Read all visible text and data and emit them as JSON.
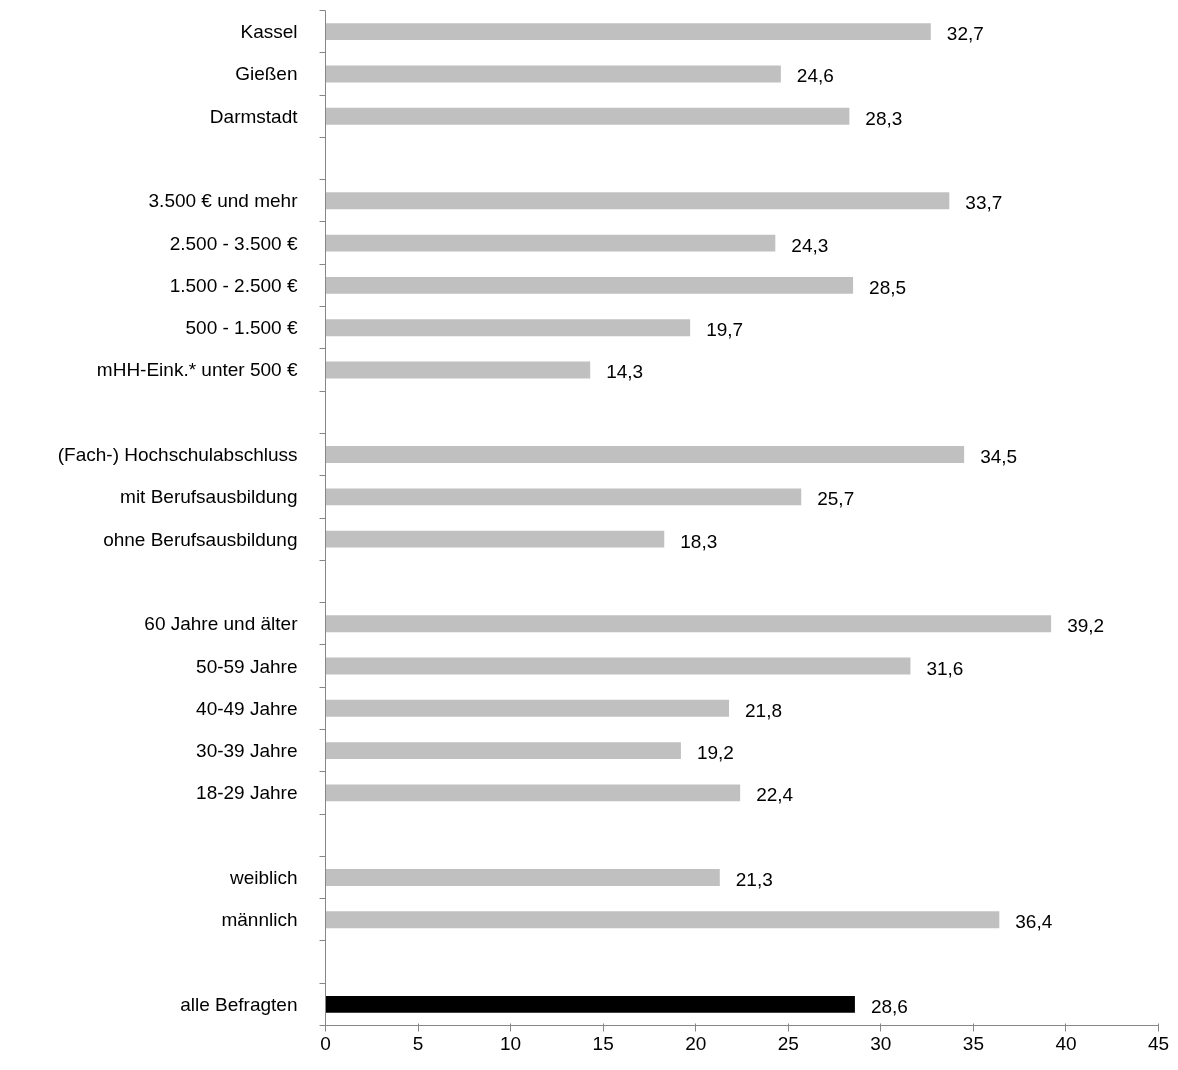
{
  "chart_data": {
    "type": "bar",
    "orientation": "horizontal",
    "categories": [
      "Kassel",
      "Gießen",
      "Darmstadt",
      null,
      "3.500 € und mehr",
      "2.500 - 3.500 €",
      "1.500 - 2.500 €",
      "500 - 1.500 €",
      "mHH-Eink.* unter 500 €",
      null,
      "(Fach-) Hochschulabschluss",
      "mit Berufsausbildung",
      "ohne Berufsausbildung",
      null,
      "60 Jahre und älter",
      "50-59 Jahre",
      "40-49 Jahre",
      "30-39 Jahre",
      "18-29 Jahre",
      null,
      "weiblich",
      "männlich",
      null,
      "alle Befragten"
    ],
    "values": [
      32.7,
      24.6,
      28.3,
      null,
      33.7,
      24.3,
      28.5,
      19.7,
      14.3,
      null,
      34.5,
      25.7,
      18.3,
      null,
      39.2,
      31.6,
      21.8,
      19.2,
      22.4,
      null,
      21.3,
      36.4,
      null,
      28.6
    ],
    "value_labels": [
      "32,7",
      "24,6",
      "28,3",
      null,
      "33,7",
      "24,3",
      "28,5",
      "19,7",
      "14,3",
      null,
      "34,5",
      "25,7",
      "18,3",
      null,
      "39,2",
      "31,6",
      "21,8",
      "19,2",
      "22,4",
      null,
      "21,3",
      "36,4",
      null,
      "28,6"
    ],
    "colors": [
      "#c0c0c0",
      "#c0c0c0",
      "#c0c0c0",
      null,
      "#c0c0c0",
      "#c0c0c0",
      "#c0c0c0",
      "#c0c0c0",
      "#c0c0c0",
      null,
      "#c0c0c0",
      "#c0c0c0",
      "#c0c0c0",
      null,
      "#c0c0c0",
      "#c0c0c0",
      "#c0c0c0",
      "#c0c0c0",
      "#c0c0c0",
      null,
      "#c0c0c0",
      "#c0c0c0",
      null,
      "#000000"
    ],
    "xlim": [
      0,
      45
    ],
    "xticks": [
      0,
      5,
      10,
      15,
      20,
      25,
      30,
      35,
      40,
      45
    ],
    "grid": false
  }
}
